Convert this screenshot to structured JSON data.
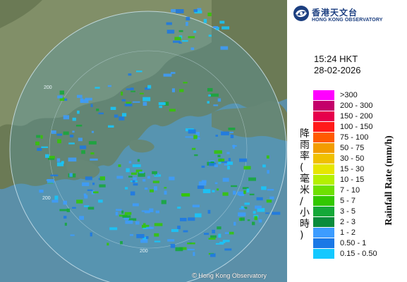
{
  "map": {
    "credit_symbol": "©",
    "credit_text": "Hong Kong Observatory",
    "range_labels": [
      "200",
      "200",
      "200"
    ]
  },
  "header": {
    "org_name_zh": "香港天文台",
    "org_name_en": "HONG KONG OBSERVATORY",
    "logo_icon": "hko-swirl-logo-icon",
    "logo_color": "#1c3f80"
  },
  "timestamp": {
    "time": "15:24 HKT",
    "date": "28-02-2026"
  },
  "legend": {
    "title_en": "Rainfall Rate (mm/h)",
    "title_zh": "降雨率(毫米/小時)",
    "items": [
      {
        "label": ">300",
        "color": "#ff00ff"
      },
      {
        "label": "200 - 300",
        "color": "#c4006a"
      },
      {
        "label": "150 - 200",
        "color": "#e6004c"
      },
      {
        "label": "100 - 150",
        "color": "#ff1a1a"
      },
      {
        "label": "75 - 100",
        "color": "#ff5a00"
      },
      {
        "label": "50 - 75",
        "color": "#f29c00"
      },
      {
        "label": "30 - 50",
        "color": "#f0c000"
      },
      {
        "label": "15 - 30",
        "color": "#e6e600"
      },
      {
        "label": "10 - 15",
        "color": "#b4f000"
      },
      {
        "label": "7 - 10",
        "color": "#6ee000"
      },
      {
        "label": "5 - 7",
        "color": "#32c800"
      },
      {
        "label": "3 - 5",
        "color": "#14a838"
      },
      {
        "label": "2 - 3",
        "color": "#0a8c3c"
      },
      {
        "label": "1 - 2",
        "color": "#3c9cff"
      },
      {
        "label": "0.50 - 1",
        "color": "#1a78e6"
      },
      {
        "label": "0.15 - 0.50",
        "color": "#14c8ff"
      }
    ]
  }
}
